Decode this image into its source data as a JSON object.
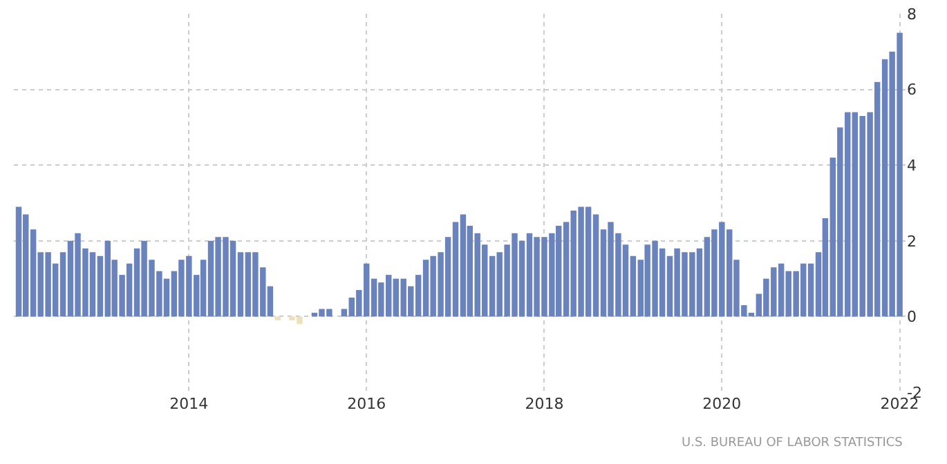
{
  "chart_data": {
    "type": "bar",
    "x": [
      "2012-02",
      "2012-03",
      "2012-04",
      "2012-05",
      "2012-06",
      "2012-07",
      "2012-08",
      "2012-09",
      "2012-10",
      "2012-11",
      "2012-12",
      "2013-01",
      "2013-02",
      "2013-03",
      "2013-04",
      "2013-05",
      "2013-06",
      "2013-07",
      "2013-08",
      "2013-09",
      "2013-10",
      "2013-11",
      "2013-12",
      "2014-01",
      "2014-02",
      "2014-03",
      "2014-04",
      "2014-05",
      "2014-06",
      "2014-07",
      "2014-08",
      "2014-09",
      "2014-10",
      "2014-11",
      "2014-12",
      "2015-01",
      "2015-02",
      "2015-03",
      "2015-04",
      "2015-05",
      "2015-06",
      "2015-07",
      "2015-08",
      "2015-09",
      "2015-10",
      "2015-11",
      "2015-12",
      "2016-01",
      "2016-02",
      "2016-03",
      "2016-04",
      "2016-05",
      "2016-06",
      "2016-07",
      "2016-08",
      "2016-09",
      "2016-10",
      "2016-11",
      "2016-12",
      "2017-01",
      "2017-02",
      "2017-03",
      "2017-04",
      "2017-05",
      "2017-06",
      "2017-07",
      "2017-08",
      "2017-09",
      "2017-10",
      "2017-11",
      "2017-12",
      "2018-01",
      "2018-02",
      "2018-03",
      "2018-04",
      "2018-05",
      "2018-06",
      "2018-07",
      "2018-08",
      "2018-09",
      "2018-10",
      "2018-11",
      "2018-12",
      "2019-01",
      "2019-02",
      "2019-03",
      "2019-04",
      "2019-05",
      "2019-06",
      "2019-07",
      "2019-08",
      "2019-09",
      "2019-10",
      "2019-11",
      "2019-12",
      "2020-01",
      "2020-02",
      "2020-03",
      "2020-04",
      "2020-05",
      "2020-06",
      "2020-07",
      "2020-08",
      "2020-09",
      "2020-10",
      "2020-11",
      "2020-12",
      "2021-01",
      "2021-02",
      "2021-03",
      "2021-04",
      "2021-05",
      "2021-06",
      "2021-07",
      "2021-08",
      "2021-09",
      "2021-10",
      "2021-11",
      "2021-12",
      "2022-01"
    ],
    "values": [
      2.9,
      2.7,
      2.3,
      1.7,
      1.7,
      1.4,
      1.7,
      2.0,
      2.2,
      1.8,
      1.7,
      1.6,
      2.0,
      1.5,
      1.1,
      1.4,
      1.8,
      2.0,
      1.5,
      1.2,
      1.0,
      1.2,
      1.5,
      1.6,
      1.1,
      1.5,
      2.0,
      2.1,
      2.1,
      2.0,
      1.7,
      1.7,
      1.7,
      1.3,
      0.8,
      -0.1,
      0.0,
      -0.1,
      -0.2,
      0.0,
      0.1,
      0.2,
      0.2,
      0.0,
      0.2,
      0.5,
      0.7,
      1.4,
      1.0,
      0.9,
      1.1,
      1.0,
      1.0,
      0.8,
      1.1,
      1.5,
      1.6,
      1.7,
      2.1,
      2.5,
      2.7,
      2.4,
      2.2,
      1.9,
      1.6,
      1.7,
      1.9,
      2.2,
      2.0,
      2.2,
      2.1,
      2.1,
      2.2,
      2.4,
      2.5,
      2.8,
      2.9,
      2.9,
      2.7,
      2.3,
      2.5,
      2.2,
      1.9,
      1.6,
      1.5,
      1.9,
      2.0,
      1.8,
      1.6,
      1.8,
      1.7,
      1.7,
      1.8,
      2.1,
      2.3,
      2.5,
      2.3,
      1.5,
      0.3,
      0.1,
      0.6,
      1.0,
      1.3,
      1.4,
      1.2,
      1.2,
      1.4,
      1.4,
      1.7,
      2.6,
      4.2,
      5.0,
      5.4,
      5.4,
      5.3,
      5.4,
      6.2,
      6.8,
      7.0,
      7.5
    ],
    "colors": [
      "#6a83bd",
      "#6a83bd",
      "#6a83bd",
      "#6a83bd",
      "#6a83bd",
      "#6a83bd",
      "#6a83bd",
      "#6a83bd",
      "#6a83bd",
      "#6a83bd",
      "#6a83bd",
      "#6a83bd",
      "#6a83bd",
      "#6a83bd",
      "#6a83bd",
      "#6a83bd",
      "#6a83bd",
      "#6a83bd",
      "#6a83bd",
      "#6a83bd",
      "#6a83bd",
      "#6a83bd",
      "#6a83bd",
      "#6a83bd",
      "#6a83bd",
      "#6a83bd",
      "#6a83bd",
      "#6a83bd",
      "#6a83bd",
      "#6a83bd",
      "#6a83bd",
      "#6a83bd",
      "#6a83bd",
      "#6a83bd",
      "#6a83bd",
      "#ede1b9",
      "#6a83bd",
      "#ede1b9",
      "#ede1b9",
      "#6a83bd",
      "#6a83bd",
      "#6a83bd",
      "#6a83bd",
      "#6a83bd",
      "#6a83bd",
      "#6a83bd",
      "#6a83bd",
      "#6a83bd",
      "#6a83bd",
      "#6a83bd",
      "#6a83bd",
      "#6a83bd",
      "#6a83bd",
      "#6a83bd",
      "#6a83bd",
      "#6a83bd",
      "#6a83bd",
      "#6a83bd",
      "#6a83bd",
      "#6a83bd",
      "#6a83bd",
      "#6a83bd",
      "#6a83bd",
      "#6a83bd",
      "#6a83bd",
      "#6a83bd",
      "#6a83bd",
      "#6a83bd",
      "#6a83bd",
      "#6a83bd",
      "#6a83bd",
      "#6a83bd",
      "#6a83bd",
      "#6a83bd",
      "#6a83bd",
      "#6a83bd",
      "#6a83bd",
      "#6a83bd",
      "#6a83bd",
      "#6a83bd",
      "#6a83bd",
      "#6a83bd",
      "#6a83bd",
      "#6a83bd",
      "#6a83bd",
      "#6a83bd",
      "#6a83bd",
      "#6a83bd",
      "#6a83bd",
      "#6a83bd",
      "#6a83bd",
      "#6a83bd",
      "#6a83bd",
      "#6a83bd",
      "#6a83bd",
      "#6a83bd",
      "#6a83bd",
      "#6a83bd",
      "#6a83bd",
      "#6a83bd",
      "#6a83bd",
      "#6a83bd",
      "#6a83bd",
      "#6a83bd",
      "#6a83bd",
      "#6a83bd",
      "#6a83bd",
      "#6a83bd",
      "#6a83bd",
      "#6a83bd",
      "#6a83bd",
      "#6a83bd",
      "#6a83bd",
      "#6a83bd",
      "#6a83bd",
      "#6a83bd",
      "#6a83bd",
      "#6a83bd",
      "#6a83bd",
      "#6a83bd"
    ],
    "xlim": [
      "2012-01-12",
      "2022-01-25"
    ],
    "xticks": [
      {
        "value": "2014",
        "label": "2014"
      },
      {
        "value": "2016",
        "label": "2016"
      },
      {
        "value": "2018",
        "label": "2018"
      },
      {
        "value": "2020",
        "label": "2020"
      },
      {
        "value": "2022",
        "label": "2022"
      }
    ],
    "ylim": [
      -2,
      8
    ],
    "yticks": [
      -2,
      0,
      2,
      4,
      6,
      8
    ],
    "grid": true,
    "annotations": [
      "U.S. BUREAU OF LABOR STATISTICS"
    ]
  }
}
